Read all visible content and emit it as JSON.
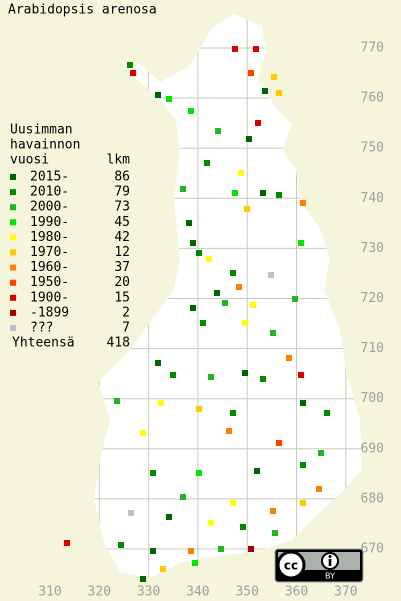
{
  "title": "Arabidopsis arenosa",
  "legend": {
    "heading": [
      "Uusimman",
      "havainnon",
      "vuosi"
    ],
    "count_heading": "lkm",
    "rows": [
      {
        "label": "2015-",
        "count": 86,
        "color": "#006400"
      },
      {
        "label": "2010-",
        "count": 79,
        "color": "#008c00"
      },
      {
        "label": "2000-",
        "count": 73,
        "color": "#22b422"
      },
      {
        "label": "1990-",
        "count": 45,
        "color": "#00e600"
      },
      {
        "label": "1980-",
        "count": 42,
        "color": "#ffff00"
      },
      {
        "label": "1970-",
        "count": 12,
        "color": "#ffc800"
      },
      {
        "label": "1960-",
        "count": 37,
        "color": "#ff8000"
      },
      {
        "label": "1950-",
        "count": 20,
        "color": "#ff4000"
      },
      {
        "label": "1900-",
        "count": 15,
        "color": "#dc0000"
      },
      {
        "label": "-1899",
        "count": 2,
        "color": "#a00000"
      },
      {
        "label": "???",
        "count": 7,
        "color": "#c0c0c0"
      }
    ],
    "total_label": "Yhteensä",
    "total": 418
  },
  "axes": {
    "xticks": [
      310,
      320,
      330,
      340,
      350,
      360,
      370
    ],
    "yticks": [
      670,
      680,
      690,
      700,
      710,
      720,
      730,
      740,
      750,
      760,
      770
    ]
  },
  "license": {
    "cc": "cc",
    "by": "BY"
  }
}
